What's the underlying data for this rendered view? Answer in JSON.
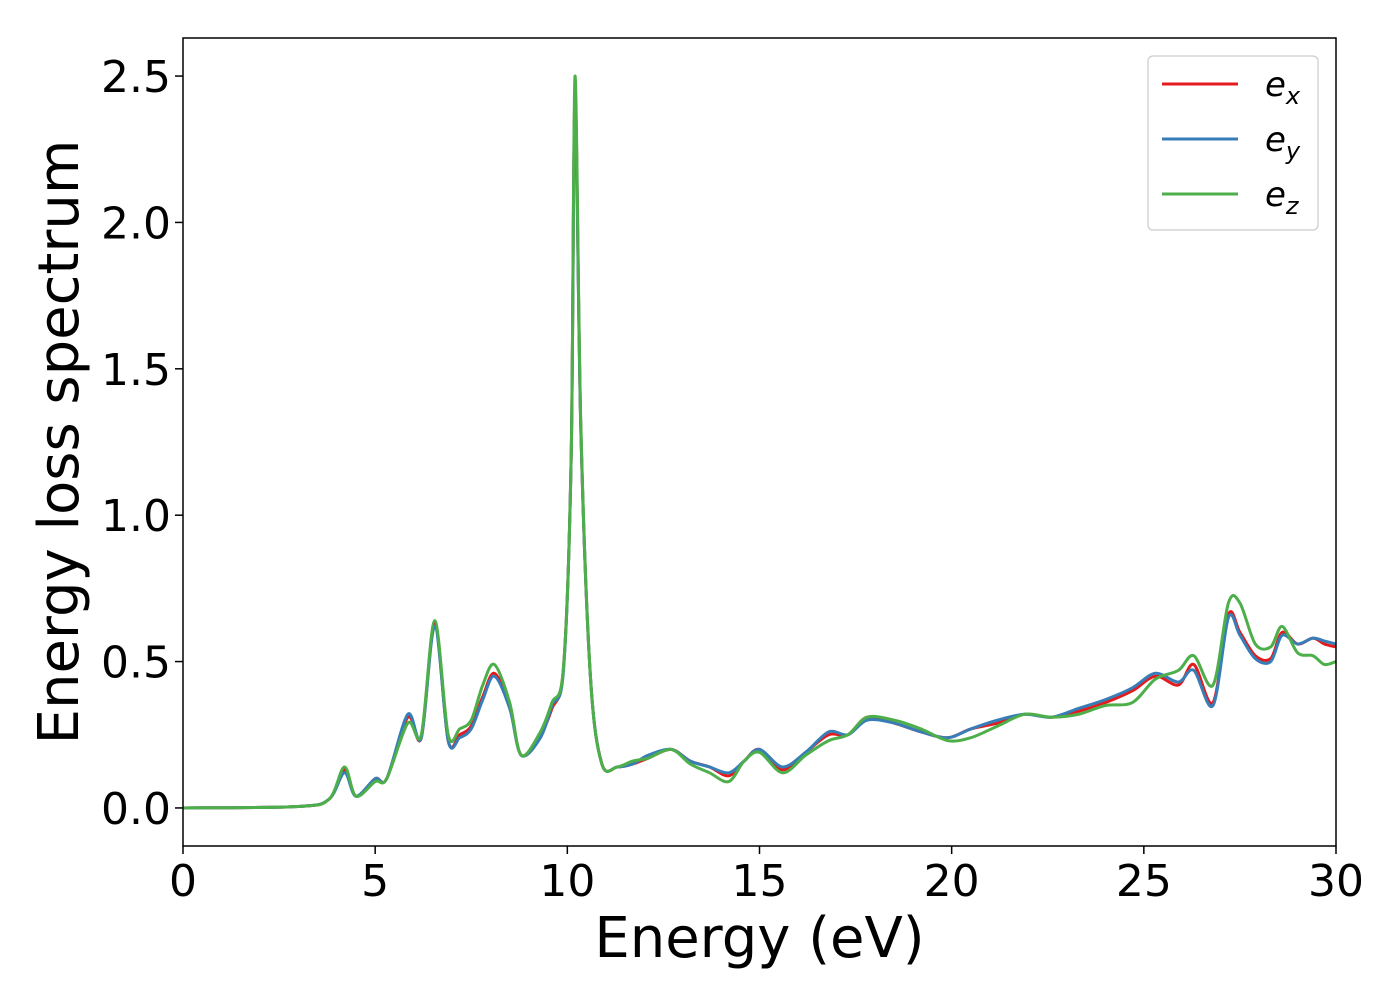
{
  "chart_data": {
    "type": "line",
    "xlabel": "Energy (eV)",
    "ylabel": "Energy loss spectrum",
    "xlim": [
      0,
      30
    ],
    "ylim": [
      -0.13,
      2.63
    ],
    "xticks": [
      0,
      5,
      10,
      15,
      20,
      25,
      30
    ],
    "xtick_labels": [
      "0",
      "5",
      "10",
      "15",
      "20",
      "25",
      "30"
    ],
    "yticks": [
      0.0,
      0.5,
      1.0,
      1.5,
      2.0,
      2.5
    ],
    "ytick_labels": [
      "0.0",
      "0.5",
      "1.0",
      "1.5",
      "2.0",
      "2.5"
    ],
    "grid": false,
    "legend": {
      "position": "top-right",
      "entries": [
        "e_x",
        "e_y",
        "e_z"
      ]
    },
    "series": [
      {
        "name": "e_x",
        "legend_base": "e",
        "legend_sub": "x",
        "color": "#e41a1c",
        "x": [
          0,
          3,
          3.8,
          4.2,
          4.5,
          5.0,
          5.3,
          5.85,
          6.2,
          6.55,
          6.9,
          7.2,
          7.5,
          7.8,
          8.1,
          8.5,
          8.8,
          9.3,
          9.6,
          9.9,
          10.1,
          10.2,
          10.35,
          10.6,
          10.9,
          11.3,
          11.7,
          12.1,
          12.7,
          13.2,
          13.7,
          14.2,
          14.6,
          15.0,
          15.6,
          16.2,
          16.8,
          17.3,
          17.8,
          18.5,
          19.2,
          19.9,
          20.5,
          21.2,
          21.9,
          22.6,
          23.3,
          24.0,
          24.7,
          25.3,
          25.9,
          26.3,
          26.8,
          27.2,
          27.5,
          27.9,
          28.3,
          28.6,
          29.0,
          29.4,
          29.7,
          30.0
        ],
        "y": [
          0.0,
          0.005,
          0.03,
          0.13,
          0.04,
          0.1,
          0.1,
          0.31,
          0.24,
          0.63,
          0.23,
          0.25,
          0.28,
          0.38,
          0.46,
          0.35,
          0.18,
          0.25,
          0.34,
          0.48,
          1.2,
          2.45,
          1.3,
          0.45,
          0.15,
          0.14,
          0.15,
          0.17,
          0.2,
          0.16,
          0.14,
          0.11,
          0.16,
          0.2,
          0.13,
          0.19,
          0.25,
          0.25,
          0.31,
          0.29,
          0.26,
          0.24,
          0.27,
          0.29,
          0.32,
          0.31,
          0.33,
          0.36,
          0.4,
          0.45,
          0.42,
          0.49,
          0.36,
          0.66,
          0.6,
          0.52,
          0.51,
          0.6,
          0.56,
          0.58,
          0.56,
          0.55
        ]
      },
      {
        "name": "e_y",
        "legend_base": "e",
        "legend_sub": "y",
        "color": "#377eb8",
        "x": [
          0,
          3,
          3.8,
          4.2,
          4.5,
          5.0,
          5.3,
          5.85,
          6.2,
          6.55,
          6.9,
          7.2,
          7.5,
          7.8,
          8.1,
          8.5,
          8.8,
          9.3,
          9.6,
          9.9,
          10.1,
          10.2,
          10.35,
          10.6,
          10.9,
          11.3,
          11.7,
          12.1,
          12.7,
          13.2,
          13.7,
          14.2,
          14.6,
          15.0,
          15.6,
          16.2,
          16.8,
          17.3,
          17.8,
          18.5,
          19.2,
          19.9,
          20.5,
          21.2,
          21.9,
          22.6,
          23.3,
          24.0,
          24.7,
          25.3,
          25.9,
          26.3,
          26.8,
          27.2,
          27.5,
          27.9,
          28.3,
          28.6,
          29.0,
          29.4,
          29.7,
          30.0
        ],
        "y": [
          0.0,
          0.005,
          0.03,
          0.12,
          0.04,
          0.1,
          0.1,
          0.32,
          0.24,
          0.62,
          0.23,
          0.24,
          0.27,
          0.37,
          0.45,
          0.34,
          0.18,
          0.24,
          0.35,
          0.47,
          1.2,
          2.42,
          1.3,
          0.45,
          0.15,
          0.14,
          0.15,
          0.18,
          0.2,
          0.16,
          0.14,
          0.12,
          0.16,
          0.2,
          0.14,
          0.19,
          0.26,
          0.25,
          0.3,
          0.29,
          0.26,
          0.24,
          0.27,
          0.3,
          0.32,
          0.31,
          0.34,
          0.37,
          0.41,
          0.46,
          0.43,
          0.47,
          0.35,
          0.65,
          0.59,
          0.51,
          0.5,
          0.59,
          0.56,
          0.58,
          0.57,
          0.56
        ]
      },
      {
        "name": "e_z",
        "legend_base": "e",
        "legend_sub": "z",
        "color": "#4daf4a",
        "x": [
          0,
          3,
          3.8,
          4.2,
          4.5,
          5.0,
          5.3,
          5.85,
          6.2,
          6.55,
          6.9,
          7.2,
          7.5,
          7.8,
          8.1,
          8.5,
          8.8,
          9.3,
          9.6,
          9.9,
          10.1,
          10.2,
          10.35,
          10.6,
          10.9,
          11.3,
          11.7,
          12.1,
          12.7,
          13.2,
          13.7,
          14.2,
          14.6,
          15.0,
          15.6,
          16.2,
          16.8,
          17.3,
          17.8,
          18.5,
          19.2,
          19.9,
          20.5,
          21.2,
          21.9,
          22.6,
          23.3,
          24.0,
          24.7,
          25.3,
          25.9,
          26.3,
          26.8,
          27.2,
          27.5,
          27.9,
          28.3,
          28.6,
          29.0,
          29.4,
          29.7,
          30.0
        ],
        "y": [
          0.0,
          0.005,
          0.03,
          0.14,
          0.04,
          0.09,
          0.1,
          0.29,
          0.25,
          0.64,
          0.25,
          0.27,
          0.3,
          0.42,
          0.49,
          0.36,
          0.18,
          0.26,
          0.36,
          0.48,
          1.2,
          2.5,
          1.32,
          0.45,
          0.15,
          0.14,
          0.16,
          0.17,
          0.2,
          0.15,
          0.12,
          0.09,
          0.16,
          0.19,
          0.12,
          0.18,
          0.23,
          0.25,
          0.31,
          0.3,
          0.27,
          0.23,
          0.24,
          0.28,
          0.32,
          0.31,
          0.32,
          0.35,
          0.36,
          0.44,
          0.47,
          0.52,
          0.42,
          0.7,
          0.7,
          0.56,
          0.55,
          0.62,
          0.53,
          0.52,
          0.49,
          0.5
        ]
      }
    ]
  }
}
